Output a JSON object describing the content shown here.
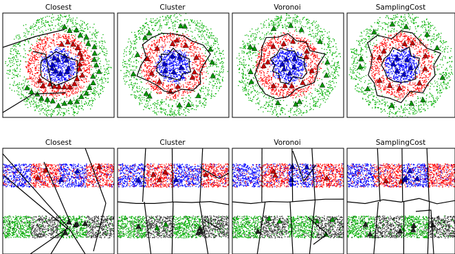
{
  "chart_data": [
    {
      "type": "scatter",
      "title": "Closest",
      "row": 0,
      "dataset": "concentric-rings",
      "series_colors": [
        "#0000ff",
        "#ff0000",
        "#00b000"
      ],
      "prototype_colors": [
        "#0000cc",
        "#cc0000",
        "#009900"
      ],
      "description_points": "dense points in three concentric rings with triangle prototypes",
      "boundary": "closest"
    },
    {
      "type": "scatter",
      "title": "Cluster",
      "row": 0,
      "dataset": "concentric-rings",
      "series_colors": [
        "#0000ff",
        "#ff0000",
        "#00b000"
      ],
      "prototype_colors": [
        "#0000cc",
        "#cc0000",
        "#009900"
      ],
      "boundary": "cluster"
    },
    {
      "type": "scatter",
      "title": "Voronoi",
      "row": 0,
      "dataset": "concentric-rings",
      "series_colors": [
        "#0000ff",
        "#ff0000",
        "#00b000"
      ],
      "prototype_colors": [
        "#0000cc",
        "#cc0000",
        "#009900"
      ],
      "boundary": "voronoi"
    },
    {
      "type": "scatter",
      "title": "SamplingCost",
      "row": 0,
      "dataset": "concentric-rings",
      "series_colors": [
        "#0000ff",
        "#ff0000",
        "#00b000"
      ],
      "prototype_colors": [
        "#0000cc",
        "#cc0000",
        "#009900"
      ],
      "boundary": "sampling"
    },
    {
      "type": "scatter",
      "title": "Closest",
      "row": 1,
      "dataset": "checkerboard-bands",
      "series_colors": [
        "#ff0000",
        "#0000ff",
        "#00b000",
        "#333333"
      ],
      "prototype_colors": [
        "#cc0000",
        "#0000cc",
        "#009900",
        "#222222"
      ],
      "boundary": "closest"
    },
    {
      "type": "scatter",
      "title": "Cluster",
      "row": 1,
      "dataset": "checkerboard-bands",
      "series_colors": [
        "#ff0000",
        "#0000ff",
        "#00b000",
        "#333333"
      ],
      "prototype_colors": [
        "#cc0000",
        "#0000cc",
        "#009900",
        "#222222"
      ],
      "boundary": "cluster"
    },
    {
      "type": "scatter",
      "title": "Voronoi",
      "row": 1,
      "dataset": "checkerboard-bands",
      "series_colors": [
        "#ff0000",
        "#0000ff",
        "#00b000",
        "#333333"
      ],
      "prototype_colors": [
        "#cc0000",
        "#0000cc",
        "#009900",
        "#222222"
      ],
      "boundary": "voronoi"
    },
    {
      "type": "scatter",
      "title": "SamplingCost",
      "row": 1,
      "dataset": "checkerboard-bands",
      "series_colors": [
        "#ff0000",
        "#0000ff",
        "#00b000",
        "#333333"
      ],
      "prototype_colors": [
        "#cc0000",
        "#0000cc",
        "#009900",
        "#222222"
      ],
      "boundary": "sampling"
    }
  ]
}
